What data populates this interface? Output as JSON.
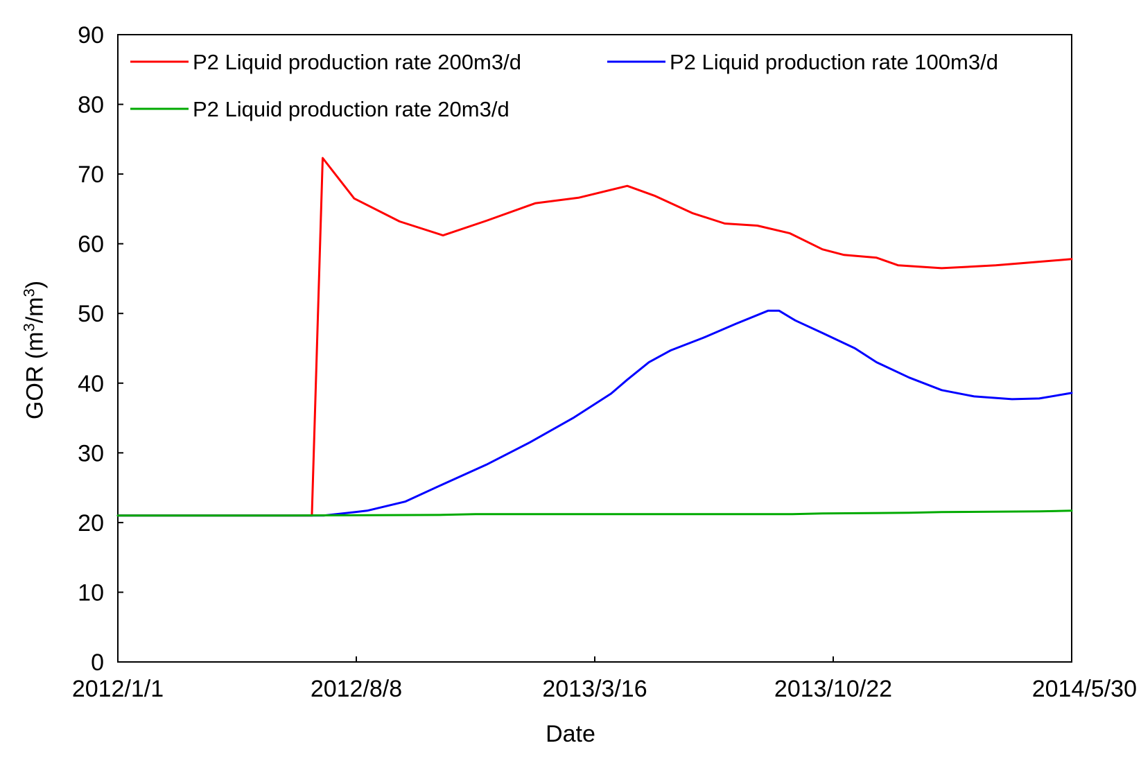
{
  "chart_data": {
    "type": "line",
    "title": "",
    "xlabel": "Date",
    "ylabel": "GOR (m3/m3)",
    "ylabel_parts": {
      "prefix": "GOR (m",
      "sup1": "3",
      "mid": "/m",
      "sup2": "3",
      "suffix": ")"
    },
    "xlim": [
      0,
      880
    ],
    "ylim": [
      0,
      90
    ],
    "x_ticks": [
      {
        "x": 0,
        "label": "2012/1/1"
      },
      {
        "x": 220,
        "label": "2012/8/8"
      },
      {
        "x": 440,
        "label": "2013/3/16"
      },
      {
        "x": 660,
        "label": "2013/10/22"
      },
      {
        "x": 880,
        "label": "2014/5/30"
      }
    ],
    "y_ticks": [
      0,
      10,
      20,
      30,
      40,
      50,
      60,
      70,
      80,
      90
    ],
    "grid": false,
    "legend_position": "top",
    "series": [
      {
        "name": "P2 Liquid production rate 200m3/d",
        "color": "#ff0000",
        "points": [
          [
            0,
            21
          ],
          [
            60,
            21
          ],
          [
            120,
            21
          ],
          [
            179,
            21
          ],
          [
            189,
            72.3
          ],
          [
            218,
            66.5
          ],
          [
            260,
            63.2
          ],
          [
            300,
            61.2
          ],
          [
            340,
            63.3
          ],
          [
            385,
            65.8
          ],
          [
            425,
            66.6
          ],
          [
            470,
            68.3
          ],
          [
            495,
            66.9
          ],
          [
            530,
            64.4
          ],
          [
            560,
            62.9
          ],
          [
            590,
            62.6
          ],
          [
            620,
            61.5
          ],
          [
            650,
            59.2
          ],
          [
            670,
            58.4
          ],
          [
            700,
            58.0
          ],
          [
            720,
            56.9
          ],
          [
            760,
            56.5
          ],
          [
            810,
            56.9
          ],
          [
            880,
            57.8
          ]
        ]
      },
      {
        "name": "P2 Liquid production rate 100m3/d",
        "color": "#0000ff",
        "points": [
          [
            0,
            21
          ],
          [
            60,
            21
          ],
          [
            120,
            21
          ],
          [
            190,
            21
          ],
          [
            230,
            21.7
          ],
          [
            265,
            23.0
          ],
          [
            300,
            25.5
          ],
          [
            340,
            28.3
          ],
          [
            380,
            31.5
          ],
          [
            420,
            35.0
          ],
          [
            455,
            38.5
          ],
          [
            470,
            40.5
          ],
          [
            490,
            43.0
          ],
          [
            510,
            44.7
          ],
          [
            540,
            46.5
          ],
          [
            570,
            48.5
          ],
          [
            600,
            50.4
          ],
          [
            610,
            50.4
          ],
          [
            625,
            49.0
          ],
          [
            650,
            47.2
          ],
          [
            680,
            45.0
          ],
          [
            700,
            43.0
          ],
          [
            730,
            40.8
          ],
          [
            760,
            39.0
          ],
          [
            790,
            38.1
          ],
          [
            825,
            37.7
          ],
          [
            850,
            37.8
          ],
          [
            880,
            38.6
          ]
        ]
      },
      {
        "name": "P2 Liquid production rate 20m3/d",
        "color": "#00aa00",
        "points": [
          [
            0,
            21
          ],
          [
            150,
            21
          ],
          [
            300,
            21.1
          ],
          [
            330,
            21.2
          ],
          [
            450,
            21.2
          ],
          [
            620,
            21.2
          ],
          [
            650,
            21.3
          ],
          [
            730,
            21.4
          ],
          [
            760,
            21.5
          ],
          [
            850,
            21.6
          ],
          [
            880,
            21.7
          ]
        ]
      }
    ]
  }
}
